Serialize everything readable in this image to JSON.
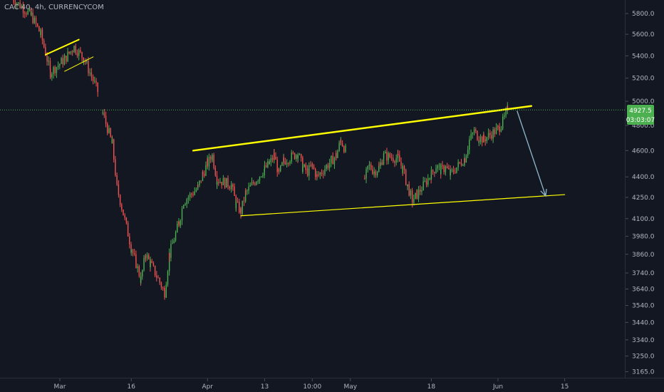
{
  "header": {
    "title": "CAC 40, 4h, CURRENCYCOM"
  },
  "price_axis": {
    "current_price": "4927.5",
    "countdown": "03:03:07",
    "current_color": "#4caf50"
  },
  "colors": {
    "background": "#131722",
    "up": "#4caf50",
    "down": "#ef5350",
    "trendline": "#ffff00",
    "arrow": "#8fb8cf",
    "axis_text": "#b2b5be"
  },
  "chart_data": {
    "type": "candlestick",
    "title": "CAC 40, 4h, CURRENCYCOM",
    "y_scale": "log",
    "y_ticks": [
      "5800.0",
      "5600.0",
      "5400.0",
      "5200.0",
      "5000.0",
      "4800.0",
      "4600.0",
      "4400.0",
      "4250.0",
      "4100.0",
      "3980.0",
      "3860.0",
      "3740.0",
      "3640.0",
      "3540.0",
      "3440.0",
      "3340.0",
      "3250.0",
      "3165.0"
    ],
    "ylim": [
      3120,
      6000
    ],
    "x_ticks": [
      "Mar",
      "16",
      "Apr",
      "13",
      "10:00",
      "May",
      "18",
      "Jun",
      "15"
    ],
    "grid": false,
    "last_price": 4927.5,
    "price_path": [
      {
        "d": "2020-02-20",
        "p": 5950
      },
      {
        "d": "2020-02-24",
        "p": 5780
      },
      {
        "d": "2020-02-26",
        "p": 5600
      },
      {
        "d": "2020-02-28",
        "p": 5250
      },
      {
        "d": "2020-03-02",
        "p": 5370
      },
      {
        "d": "2020-03-04",
        "p": 5480
      },
      {
        "d": "2020-03-06",
        "p": 5380
      },
      {
        "d": "2020-03-09",
        "p": 5080
      },
      {
        "d": "2020-03-10",
        "p": 4900
      },
      {
        "d": "2020-03-12",
        "p": 4650
      },
      {
        "d": "2020-03-13",
        "p": 4320
      },
      {
        "d": "2020-03-16",
        "p": 3900
      },
      {
        "d": "2020-03-17",
        "p": 3800
      },
      {
        "d": "2020-03-18",
        "p": 3700
      },
      {
        "d": "2020-03-19",
        "p": 3860
      },
      {
        "d": "2020-03-20",
        "p": 3800
      },
      {
        "d": "2020-03-23",
        "p": 3620
      },
      {
        "d": "2020-03-24",
        "p": 3860
      },
      {
        "d": "2020-03-26",
        "p": 4070
      },
      {
        "d": "2020-03-27",
        "p": 4220
      },
      {
        "d": "2020-03-30",
        "p": 4320
      },
      {
        "d": "2020-03-31",
        "p": 4420
      },
      {
        "d": "2020-04-01",
        "p": 4500
      },
      {
        "d": "2020-04-02",
        "p": 4560
      },
      {
        "d": "2020-04-03",
        "p": 4380
      },
      {
        "d": "2020-04-06",
        "p": 4340
      },
      {
        "d": "2020-04-07",
        "p": 4200
      },
      {
        "d": "2020-04-08",
        "p": 4150
      },
      {
        "d": "2020-04-09",
        "p": 4280
      },
      {
        "d": "2020-04-13",
        "p": 4460
      },
      {
        "d": "2020-04-14",
        "p": 4500
      },
      {
        "d": "2020-04-15",
        "p": 4560
      },
      {
        "d": "2020-04-16",
        "p": 4420
      },
      {
        "d": "2020-04-17",
        "p": 4520
      },
      {
        "d": "2020-04-20",
        "p": 4580
      },
      {
        "d": "2020-04-21",
        "p": 4470
      },
      {
        "d": "2020-04-22",
        "p": 4440
      },
      {
        "d": "2020-04-23",
        "p": 4480
      },
      {
        "d": "2020-04-24",
        "p": 4400
      },
      {
        "d": "2020-04-27",
        "p": 4520
      },
      {
        "d": "2020-04-28",
        "p": 4560
      },
      {
        "d": "2020-04-29",
        "p": 4680
      },
      {
        "d": "2020-04-30",
        "p": 4600
      },
      {
        "d": "2020-05-04",
        "p": 4390
      },
      {
        "d": "2020-05-05",
        "p": 4480
      },
      {
        "d": "2020-05-06",
        "p": 4440
      },
      {
        "d": "2020-05-07",
        "p": 4470
      },
      {
        "d": "2020-05-08",
        "p": 4560
      },
      {
        "d": "2020-05-11",
        "p": 4540
      },
      {
        "d": "2020-05-12",
        "p": 4460
      },
      {
        "d": "2020-05-13",
        "p": 4330
      },
      {
        "d": "2020-05-14",
        "p": 4230
      },
      {
        "d": "2020-05-15",
        "p": 4270
      },
      {
        "d": "2020-05-18",
        "p": 4420
      },
      {
        "d": "2020-05-19",
        "p": 4480
      },
      {
        "d": "2020-05-20",
        "p": 4450
      },
      {
        "d": "2020-05-21",
        "p": 4470
      },
      {
        "d": "2020-05-22",
        "p": 4420
      },
      {
        "d": "2020-05-25",
        "p": 4540
      },
      {
        "d": "2020-05-26",
        "p": 4680
      },
      {
        "d": "2020-05-27",
        "p": 4750
      },
      {
        "d": "2020-05-28",
        "p": 4700
      },
      {
        "d": "2020-05-29",
        "p": 4690
      },
      {
        "d": "2020-06-01",
        "p": 4770
      },
      {
        "d": "2020-06-02",
        "p": 4830
      },
      {
        "d": "2020-06-03",
        "p": 4927.5
      }
    ],
    "gaps_before": [
      "2020-03-10",
      "2020-05-04"
    ],
    "annotations": [
      {
        "type": "trendline",
        "from": {
          "d": "2020-02-27",
          "p": 5410
        },
        "to": {
          "d": "2020-03-05",
          "p": 5550
        },
        "color": "#ffff00",
        "width": 2
      },
      {
        "type": "trendline",
        "from": {
          "d": "2020-03-02",
          "p": 5260
        },
        "to": {
          "d": "2020-03-08",
          "p": 5390
        },
        "color": "#ffff00",
        "width": 1
      },
      {
        "type": "trendline",
        "from": {
          "d": "2020-03-29",
          "p": 4600
        },
        "to": {
          "d": "2020-06-08",
          "p": 4960
        },
        "color": "#ffff00",
        "width": 2.5
      },
      {
        "type": "trendline",
        "from": {
          "d": "2020-04-08",
          "p": 4120
        },
        "to": {
          "d": "2020-06-15",
          "p": 4270
        },
        "color": "#ffff00",
        "width": 1.2
      },
      {
        "type": "arrow",
        "from": {
          "d": "2020-06-05",
          "p": 4920
        },
        "to": {
          "d": "2020-06-11",
          "p": 4260
        },
        "color": "#8fb8cf"
      },
      {
        "type": "hline",
        "p": 4927.5,
        "style": "dotted",
        "color": "#4caf50"
      }
    ]
  }
}
